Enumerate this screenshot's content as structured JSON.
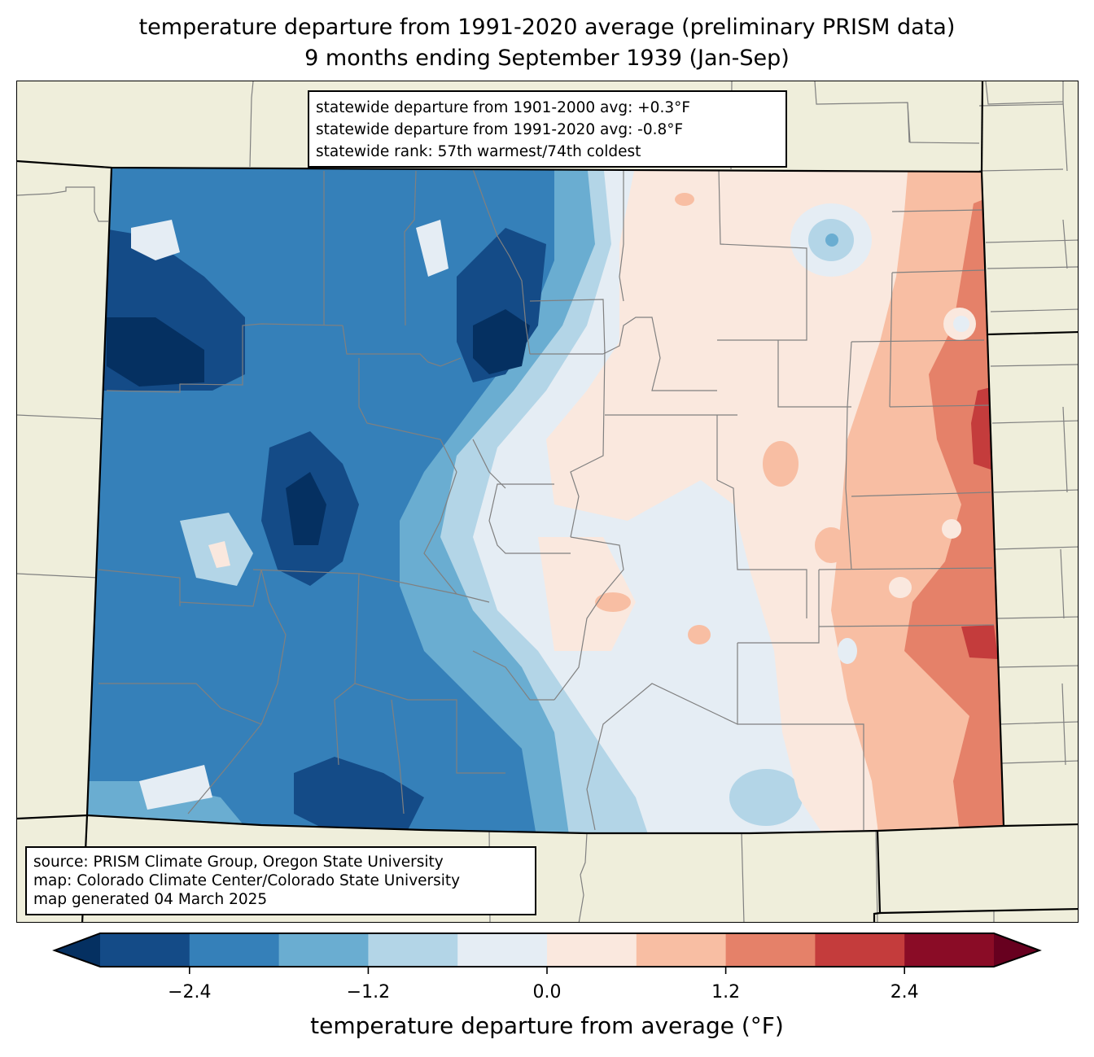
{
  "title": {
    "line1": "temperature departure from 1991-2020 average (preliminary PRISM data)",
    "line2": "9 months ending September 1939 (Jan-Sep)"
  },
  "stats_box": {
    "line1": "statewide departure from 1901-2000 avg: +0.3°F",
    "line2": "statewide departure from 1991-2020 avg: -0.8°F",
    "line3": "statewide rank: 57th warmest/74th coldest"
  },
  "source_box": {
    "line1": "source: PRISM Climate Group, Oregon State University",
    "line2": "map: Colorado Climate Center/Colorado State University",
    "line3": "map generated 04 March 2025"
  },
  "colorbar": {
    "label": "temperature departure from average (°F)",
    "min": -3.0,
    "max": 3.0,
    "step": 0.6,
    "ticks": [
      {
        "value": -2.4,
        "label": "−2.4"
      },
      {
        "value": -1.2,
        "label": "−1.2"
      },
      {
        "value": 0.0,
        "label": "0.0"
      },
      {
        "value": 1.2,
        "label": "1.2"
      },
      {
        "value": 2.4,
        "label": "2.4"
      }
    ],
    "under_color": "#053061",
    "over_color": "#67001f",
    "colors": [
      "#144b87",
      "#3580b9",
      "#6aadd1",
      "#b3d5e7",
      "#e5edf4",
      "#fae8de",
      "#f8bea3",
      "#e58169",
      "#c43c3c",
      "#8a0c26"
    ]
  },
  "map_colors": {
    "land": "#efeedb",
    "county_line": "#808080",
    "state_line": "#000000"
  }
}
